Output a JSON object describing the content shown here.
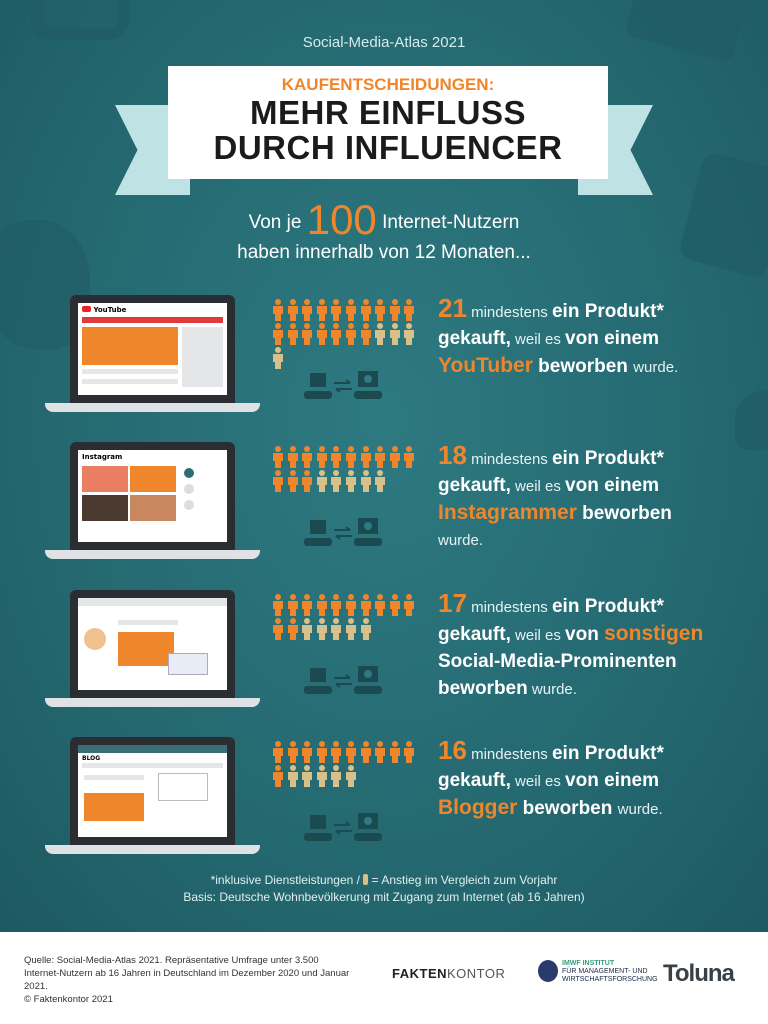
{
  "kicker": "Social-Media-Atlas 2021",
  "banner": {
    "subtitle": "KAUFENTSCHEIDUNGEN:",
    "title_line1": "MEHR EINFLUSS",
    "title_line2": "DURCH INFLUENCER"
  },
  "intro": {
    "pre": "Von je",
    "number": "100",
    "post": "Internet-Nutzern",
    "line2": "haben innerhalb von 12 Monaten..."
  },
  "colors": {
    "background": "#23656d",
    "accent": "#f0862b",
    "increase": "#d8c08a",
    "banner": "#ffffff",
    "ribbon": "#bfe3e4"
  },
  "chart_data": {
    "type": "pictogram",
    "categories": [
      "YouTuber",
      "Instagrammer",
      "sonstigen Social-Media-Prominenten",
      "Blogger"
    ],
    "values": [
      21,
      18,
      17,
      16
    ],
    "increase_vs_previous_year": [
      4,
      5,
      5,
      5
    ]
  },
  "rows": [
    {
      "platform": "YouTube",
      "screen_label": "YouTube",
      "value": 21,
      "increase": 4,
      "segments": [
        {
          "t": "21",
          "s": "num"
        },
        {
          "t": " mindestens ",
          "s": "light"
        },
        {
          "t": "ein Produkt*",
          "s": "bold"
        },
        {
          "t": "",
          "s": "br"
        },
        {
          "t": "gekauft,",
          "s": "bold"
        },
        {
          "t": " weil es ",
          "s": "light"
        },
        {
          "t": "von einem",
          "s": "bold"
        },
        {
          "t": "",
          "s": "br"
        },
        {
          "t": "YouTuber",
          "s": "hl"
        },
        {
          "t": " beworben ",
          "s": "bold"
        },
        {
          "t": " wurde.",
          "s": "light"
        }
      ]
    },
    {
      "platform": "Instagram",
      "screen_label": "Instagram",
      "value": 18,
      "increase": 5,
      "segments": [
        {
          "t": "18",
          "s": "num"
        },
        {
          "t": " mindestens ",
          "s": "light"
        },
        {
          "t": "ein Produkt*",
          "s": "bold"
        },
        {
          "t": "",
          "s": "br"
        },
        {
          "t": "gekauft,",
          "s": "bold"
        },
        {
          "t": " weil es ",
          "s": "light"
        },
        {
          "t": "von einem",
          "s": "bold"
        },
        {
          "t": "",
          "s": "br"
        },
        {
          "t": "Instagrammer",
          "s": "hl"
        },
        {
          "t": " beworben",
          "s": "bold"
        },
        {
          "t": "",
          "s": "br"
        },
        {
          "t": "wurde.",
          "s": "light"
        }
      ]
    },
    {
      "platform": "Social Media",
      "value": 17,
      "increase": 5,
      "segments": [
        {
          "t": "17",
          "s": "num"
        },
        {
          "t": " mindestens ",
          "s": "light"
        },
        {
          "t": "ein Produkt*",
          "s": "bold"
        },
        {
          "t": "",
          "s": "br"
        },
        {
          "t": "gekauft,",
          "s": "bold"
        },
        {
          "t": " weil es ",
          "s": "light"
        },
        {
          "t": "von ",
          "s": "bold"
        },
        {
          "t": "sonstigen",
          "s": "hl"
        },
        {
          "t": "",
          "s": "br"
        },
        {
          "t": "Social-Media-Prominenten",
          "s": "bold"
        },
        {
          "t": "",
          "s": "br"
        },
        {
          "t": "beworben",
          "s": "bold"
        },
        {
          "t": " wurde.",
          "s": "light"
        }
      ]
    },
    {
      "platform": "Blog",
      "screen_label": "BLOG",
      "value": 16,
      "increase": 5,
      "segments": [
        {
          "t": "16",
          "s": "num"
        },
        {
          "t": " mindestens ",
          "s": "light"
        },
        {
          "t": "ein Produkt*",
          "s": "bold"
        },
        {
          "t": "",
          "s": "br"
        },
        {
          "t": "gekauft,",
          "s": "bold"
        },
        {
          "t": " weil es ",
          "s": "light"
        },
        {
          "t": "von einem",
          "s": "bold"
        },
        {
          "t": "",
          "s": "br"
        },
        {
          "t": "Blogger",
          "s": "hl"
        },
        {
          "t": " beworben ",
          "s": "bold"
        },
        {
          "t": " wurde.",
          "s": "light"
        }
      ]
    }
  ],
  "notes": {
    "line1_pre": "*inklusive Dienstleistungen /",
    "line1_post": "= Anstieg im Vergleich zum Vorjahr",
    "line2": "Basis: Deutsche Wohnbevölkerung mit Zugang zum Internet (ab 16 Jahren)"
  },
  "footer": {
    "source": "Quelle: Social-Media-Atlas 2021. Repräsentative Umfrage unter 3.500 Internet-Nutzern ab 16 Jahren in Deutschland im Dezember 2020 und Januar 2021.",
    "copyright": "© Faktenkontor 2021",
    "logos": {
      "faktenkontor_a": "FAKTEN",
      "faktenkontor_b": "KONTOR",
      "imwf_1": "IMWF INSTITUT",
      "imwf_2": "FÜR MANAGEMENT- UND",
      "imwf_3": "WIRTSCHAFTSFORSCHUNG",
      "toluna": "Toluna"
    }
  }
}
